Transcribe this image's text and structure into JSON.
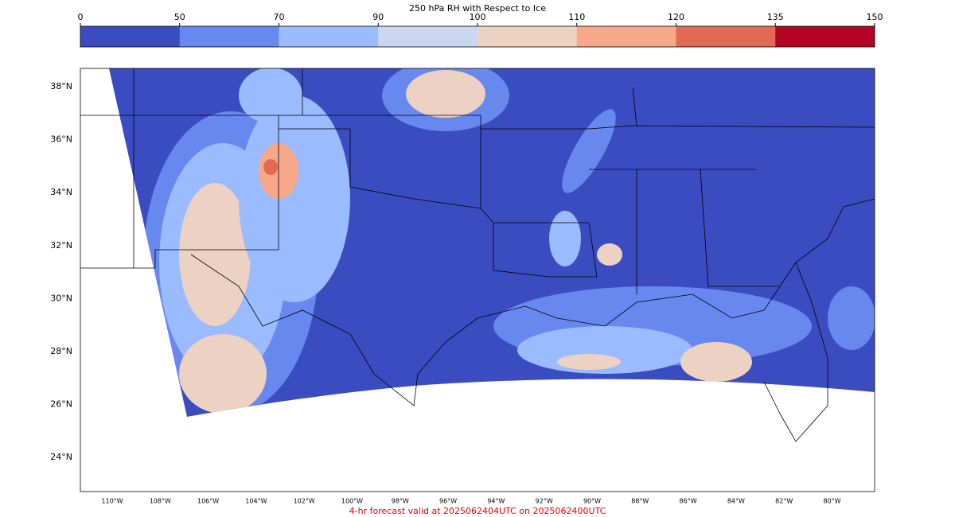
{
  "colorbar": {
    "title": "250 hPa RH with Respect to Ice",
    "ticks": [
      0,
      50,
      70,
      90,
      100,
      110,
      120,
      135,
      150
    ],
    "colors": [
      "#3b4cc0",
      "#6788ee",
      "#9abbff",
      "#c9d7f0",
      "#edd1c2",
      "#f7a889",
      "#e26952",
      "#b40426"
    ]
  },
  "map": {
    "lat_labels": [
      "38°N",
      "36°N",
      "34°N",
      "32°N",
      "30°N",
      "28°N",
      "26°N",
      "24°N"
    ],
    "lon_labels": [
      "110°W",
      "108°W",
      "106°W",
      "104°W",
      "102°W",
      "100°W",
      "98°W",
      "96°W",
      "94°W",
      "92°W",
      "90°W",
      "88°W",
      "86°W",
      "84°W",
      "82°W",
      "80°W"
    ]
  },
  "footer": "4-hr forecast valid at 2025062404UTC on 2025062400UTC"
}
